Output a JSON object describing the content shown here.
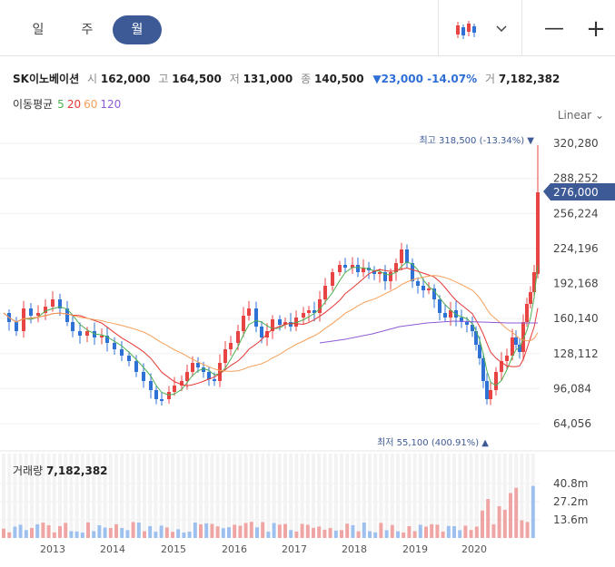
{
  "periods": [
    {
      "label": "일",
      "active": false
    },
    {
      "label": "주",
      "active": false
    },
    {
      "label": "월",
      "active": true
    }
  ],
  "controls": {
    "chart_type_icon": "candlestick-icon",
    "dropdown_icon": "chevron-down-icon",
    "zoom_out": "—",
    "zoom_in": "+"
  },
  "quote": {
    "name": "SK이노베이션",
    "open_label": "시",
    "open": "162,000",
    "high_label": "고",
    "high": "164,500",
    "low_label": "저",
    "low": "131,000",
    "close_label": "종",
    "close": "140,500",
    "change": "▼23,000 -14.07%",
    "volume_label": "거",
    "volume": "7,182,382"
  },
  "moving_average": {
    "label": "이동평균",
    "periods": [
      "5",
      "20",
      "60",
      "120"
    ],
    "colors": [
      "#4caf50",
      "#e53935",
      "#f5a05a",
      "#8e5bd6"
    ]
  },
  "scale_mode": "Linear",
  "volume_panel": {
    "label": "거래량",
    "value": "7,182,382"
  },
  "colors": {
    "up": "#e94444",
    "down": "#2f72d6",
    "accent": "#3d5a96"
  },
  "chart_data": {
    "type": "candlestick",
    "title": "",
    "xlabel": "",
    "ylabel": "",
    "ylim": [
      48000,
      330000
    ],
    "y_ticks": [
      "320,280",
      "288,252",
      "256,224",
      "224,196",
      "192,168",
      "160,140",
      "128,112",
      "96,084",
      "64,056"
    ],
    "x_ticks": [
      "2013",
      "2014",
      "2015",
      "2016",
      "2017",
      "2018",
      "2019",
      "2020"
    ],
    "current_price": "276,000",
    "max_annotation": "최고 318,500 (-13.34%)",
    "min_annotation": "최저 55,100 (400.91%)",
    "volume_ticks": [
      "40.8m",
      "27.2m",
      "13.6m"
    ],
    "grid": true
  }
}
